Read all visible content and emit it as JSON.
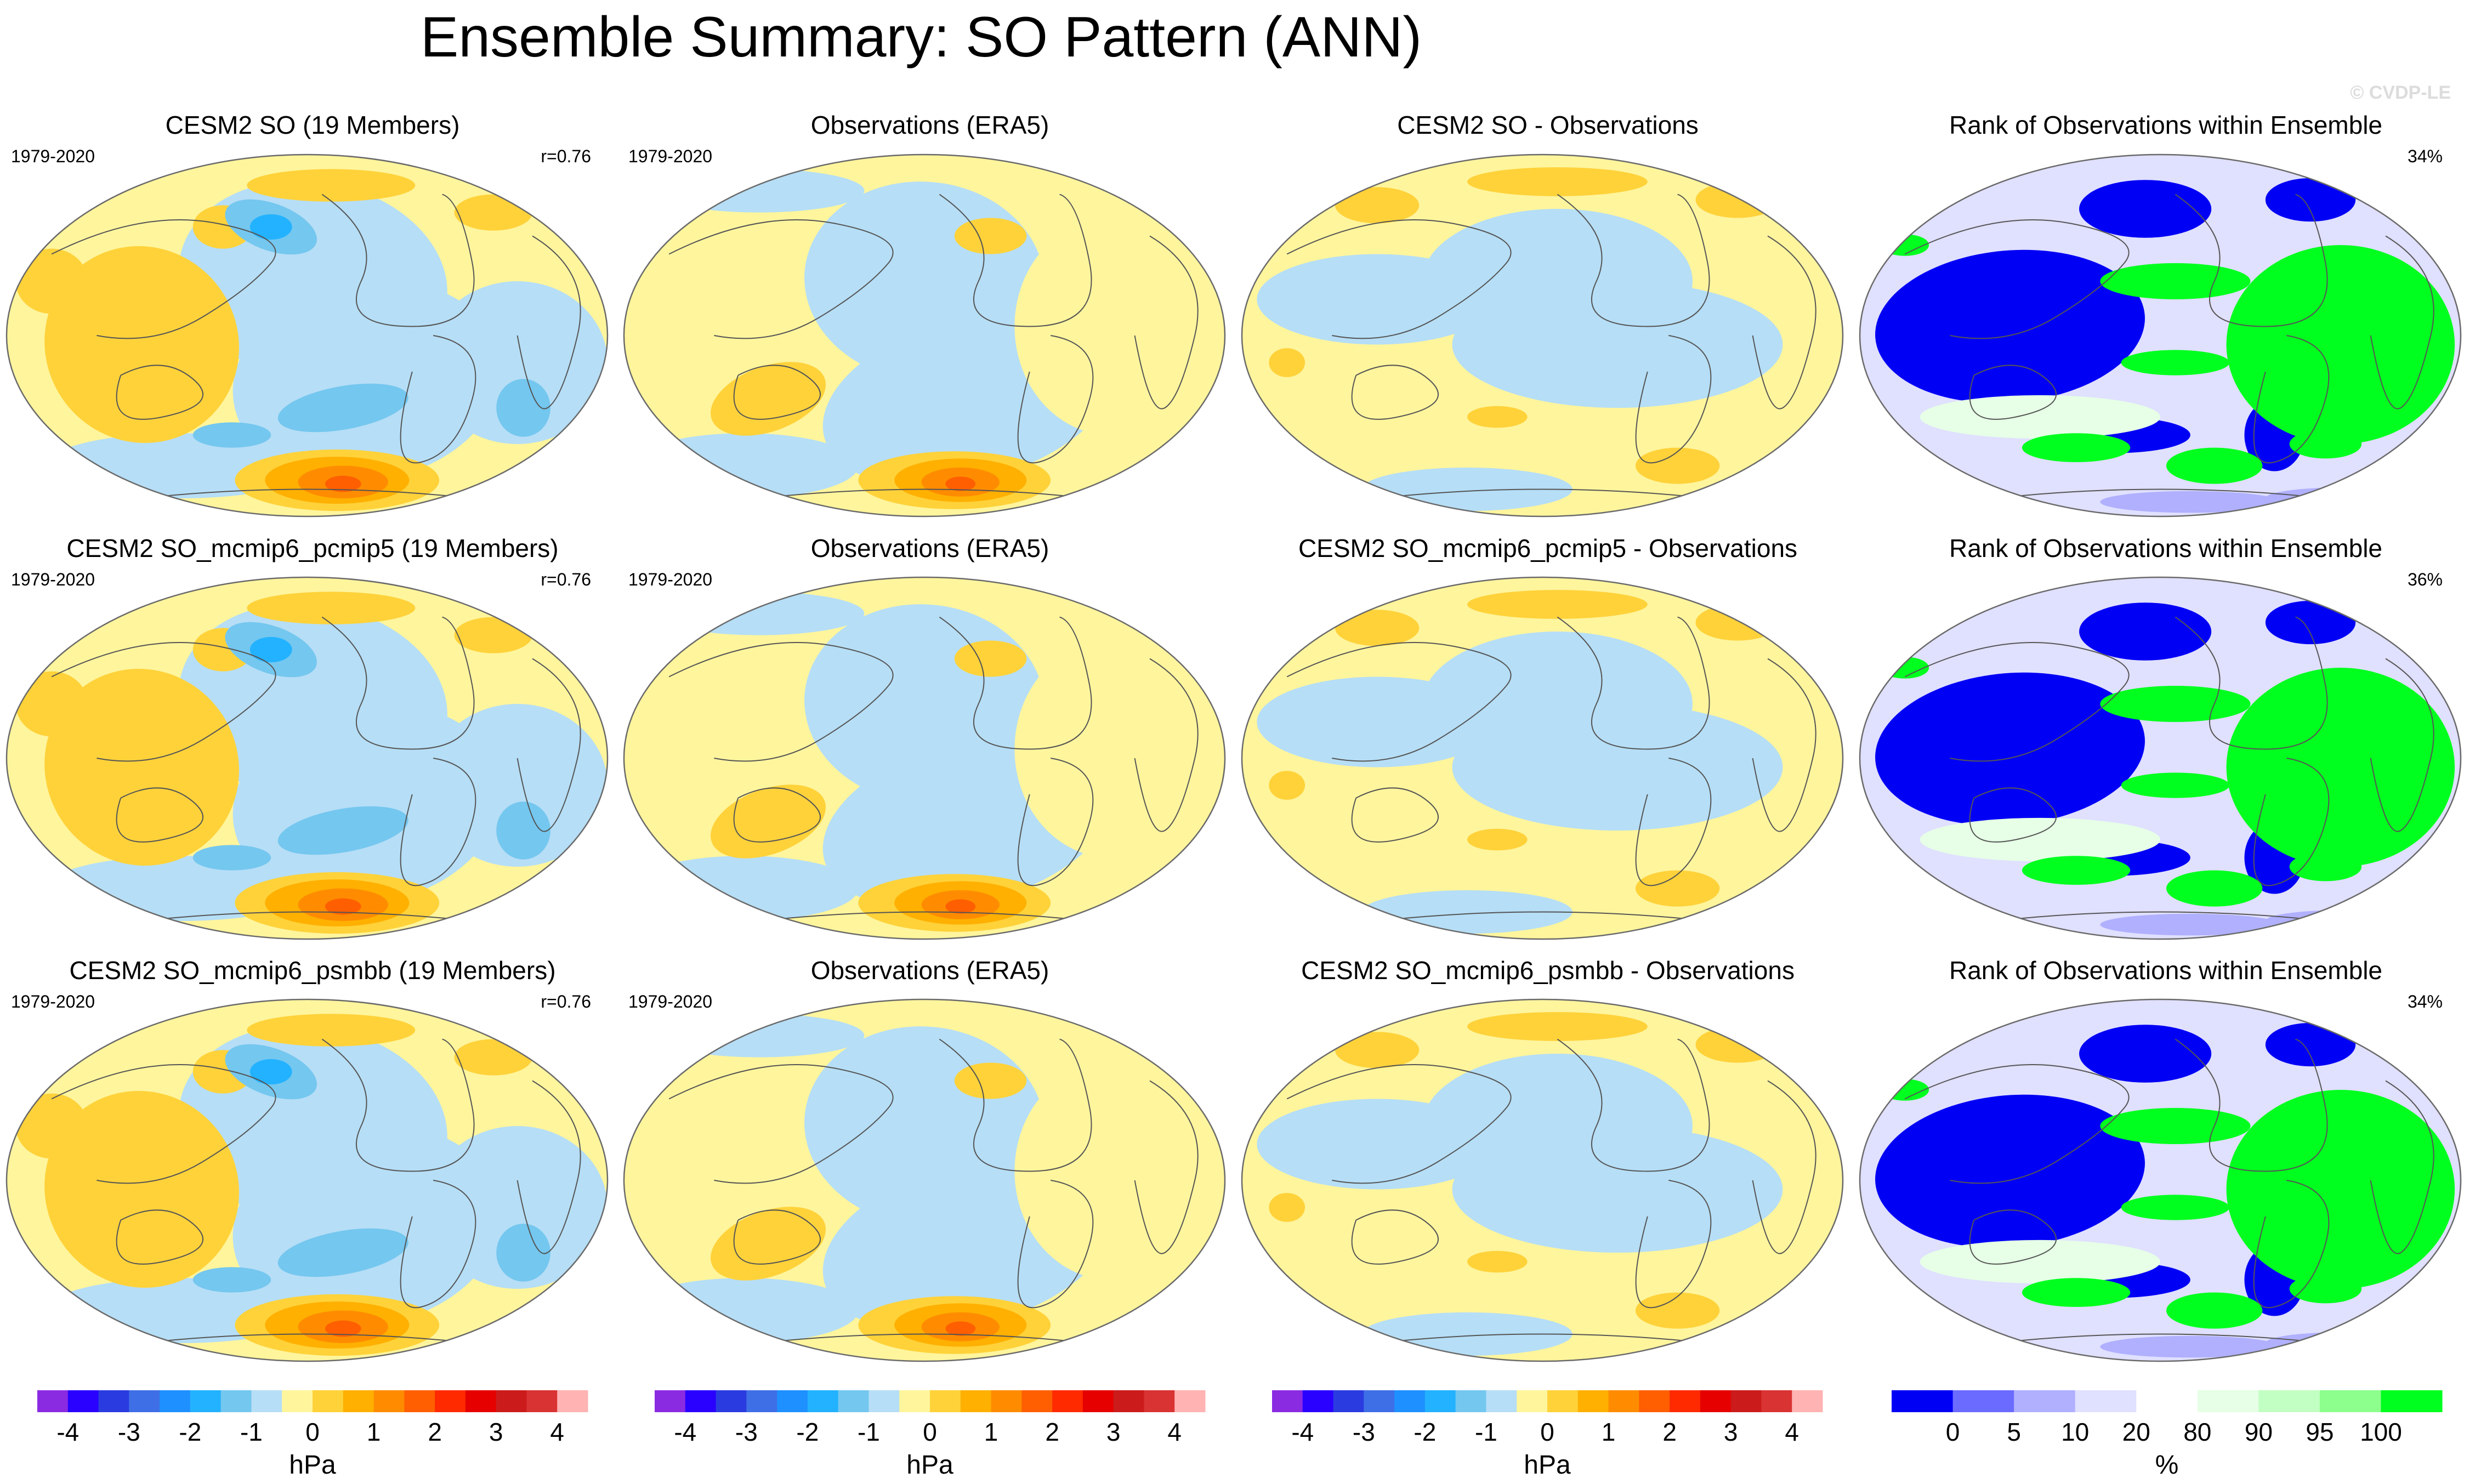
{
  "figure": {
    "title": "Ensemble Summary: SO Pattern (ANN)",
    "watermark": "© CVDP-LE"
  },
  "colors": {
    "neg": [
      "#8a2be2",
      "#2a00ff",
      "#2a3ce0",
      "#3f6fe6",
      "#1e90ff",
      "#23b2ff",
      "#74c7ef",
      "#b6def6"
    ],
    "pos": [
      "#fff59d",
      "#ffd23a",
      "#ffb000",
      "#ff8c00",
      "#ff5f00",
      "#ff2a00",
      "#e60000",
      "#cc1b1b",
      "#d93333",
      "#ffb3b3"
    ],
    "rank": [
      "#0000f5",
      "#6b6bff",
      "#b0b0ff",
      "#e0e0ff",
      "#ffffff",
      "#e6ffe6",
      "#c2ffc2",
      "#8cff8c",
      "#00ff1e"
    ]
  },
  "chart_data": [
    {
      "type": "heatmap",
      "row": 0,
      "col": 0,
      "kind": "model",
      "title": "CESM2 SO (19 Members)",
      "period": "1979-2020",
      "stat": "r=0.76"
    },
    {
      "type": "heatmap",
      "row": 0,
      "col": 1,
      "kind": "obs",
      "title": "Observations (ERA5)",
      "period": "1979-2020",
      "stat": ""
    },
    {
      "type": "heatmap",
      "row": 0,
      "col": 2,
      "kind": "diff",
      "title": "CESM2 SO - Observations",
      "period": "",
      "stat": ""
    },
    {
      "type": "heatmap",
      "row": 0,
      "col": 3,
      "kind": "rank",
      "title": "Rank of Observations within Ensemble",
      "period": "",
      "stat": "34%"
    },
    {
      "type": "heatmap",
      "row": 1,
      "col": 0,
      "kind": "model",
      "title": "CESM2 SO_mcmip6_pcmip5 (19 Members)",
      "period": "1979-2020",
      "stat": "r=0.76"
    },
    {
      "type": "heatmap",
      "row": 1,
      "col": 1,
      "kind": "obs",
      "title": "Observations (ERA5)",
      "period": "1979-2020",
      "stat": ""
    },
    {
      "type": "heatmap",
      "row": 1,
      "col": 2,
      "kind": "diff",
      "title": "CESM2 SO_mcmip6_pcmip5 - Observations",
      "period": "",
      "stat": ""
    },
    {
      "type": "heatmap",
      "row": 1,
      "col": 3,
      "kind": "rank",
      "title": "Rank of Observations within Ensemble",
      "period": "",
      "stat": "36%"
    },
    {
      "type": "heatmap",
      "row": 2,
      "col": 0,
      "kind": "model",
      "title": "CESM2 SO_mcmip6_psmbb (19 Members)",
      "period": "1979-2020",
      "stat": "r=0.76"
    },
    {
      "type": "heatmap",
      "row": 2,
      "col": 1,
      "kind": "obs",
      "title": "Observations (ERA5)",
      "period": "1979-2020",
      "stat": ""
    },
    {
      "type": "heatmap",
      "row": 2,
      "col": 2,
      "kind": "diff",
      "title": "CESM2 SO_mcmip6_psmbb - Observations",
      "period": "",
      "stat": ""
    },
    {
      "type": "heatmap",
      "row": 2,
      "col": 3,
      "kind": "rank",
      "title": "Rank of Observations within Ensemble",
      "period": "",
      "stat": "34%"
    }
  ],
  "colorbars": [
    {
      "type": "colorbar",
      "label": "hPa",
      "levels": [
        -4.5,
        -4,
        -3.5,
        -3,
        -2.5,
        -2,
        -1.5,
        -1,
        -0.5,
        0,
        0.5,
        1,
        1.5,
        2,
        2.5,
        3,
        3.5,
        4,
        4.5
      ],
      "ticks": [
        "-4",
        "-3",
        "-2",
        "-1",
        "0",
        "1",
        "2",
        "3",
        "4"
      ],
      "tick_values": [
        -4,
        -3,
        -2,
        -1,
        0,
        1,
        2,
        3,
        4
      ]
    },
    {
      "type": "colorbar",
      "label": "hPa",
      "levels": [
        -4.5,
        -4,
        -3.5,
        -3,
        -2.5,
        -2,
        -1.5,
        -1,
        -0.5,
        0,
        0.5,
        1,
        1.5,
        2,
        2.5,
        3,
        3.5,
        4,
        4.5
      ],
      "ticks": [
        "-4",
        "-3",
        "-2",
        "-1",
        "0",
        "1",
        "2",
        "3",
        "4"
      ],
      "tick_values": [
        -4,
        -3,
        -2,
        -1,
        0,
        1,
        2,
        3,
        4
      ]
    },
    {
      "type": "colorbar",
      "label": "hPa",
      "levels": [
        -4.5,
        -4,
        -3.5,
        -3,
        -2.5,
        -2,
        -1.5,
        -1,
        -0.5,
        0,
        0.5,
        1,
        1.5,
        2,
        2.5,
        3,
        3.5,
        4,
        4.5
      ],
      "ticks": [
        "-4",
        "-3",
        "-2",
        "-1",
        "0",
        "1",
        "2",
        "3",
        "4"
      ],
      "tick_values": [
        -4,
        -3,
        -2,
        -1,
        0,
        1,
        2,
        3,
        4
      ]
    },
    {
      "type": "colorbar",
      "label": "%",
      "bins": 9,
      "ticks": [
        "0",
        "5",
        "10",
        "20",
        "80",
        "90",
        "95",
        "100"
      ],
      "tick_boundaries": [
        1,
        2,
        3,
        4,
        5,
        6,
        7,
        8
      ]
    }
  ]
}
